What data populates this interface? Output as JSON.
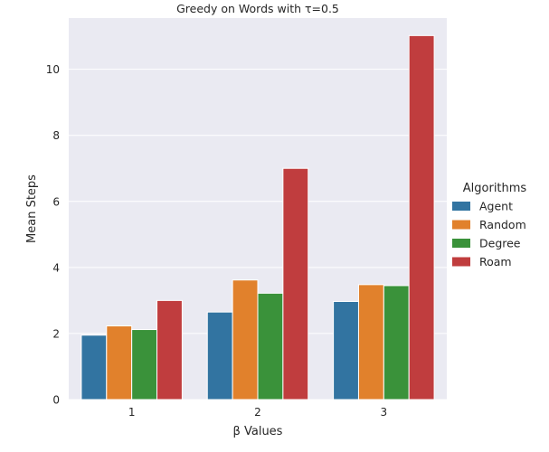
{
  "chart_data": {
    "type": "bar",
    "title": "Greedy on Words with τ=0.5",
    "xlabel": "β Values",
    "ylabel": "Mean Steps",
    "categories": [
      "1",
      "2",
      "3"
    ],
    "ylim": [
      0,
      11.55
    ],
    "yticks": [
      0,
      2,
      4,
      6,
      8,
      10
    ],
    "grid": true,
    "legend": {
      "title": "Algorithms",
      "placement": "right"
    },
    "series": [
      {
        "name": "Agent",
        "color": "#3274a1",
        "values": [
          1.95,
          2.65,
          2.97
        ]
      },
      {
        "name": "Random",
        "color": "#e1812c",
        "values": [
          2.23,
          3.62,
          3.48
        ]
      },
      {
        "name": "Degree",
        "color": "#3a923a",
        "values": [
          2.12,
          3.22,
          3.45
        ]
      },
      {
        "name": "Roam",
        "color": "#c03d3e",
        "values": [
          3.0,
          7.0,
          11.02
        ]
      }
    ]
  }
}
